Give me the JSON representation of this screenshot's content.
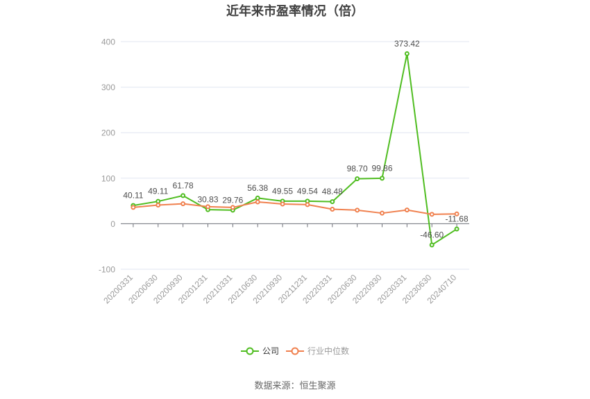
{
  "chart_data": {
    "type": "line",
    "title": "近年来市盈率情况（倍）",
    "categories": [
      "20200331",
      "20200630",
      "20200930",
      "20201231",
      "20210331",
      "20210630",
      "20210930",
      "20211231",
      "20220331",
      "20220630",
      "20220930",
      "20230331",
      "20230630",
      "20240710"
    ],
    "series": [
      {
        "name": "公司",
        "slug": "company",
        "color": "#4fbd20",
        "values": [
          40.11,
          49.11,
          61.78,
          30.83,
          29.76,
          56.38,
          49.55,
          49.54,
          48.48,
          98.7,
          99.86,
          373.42,
          -46.6,
          -11.68
        ],
        "show_labels": true,
        "legend_label_color": "#333333"
      },
      {
        "name": "行业中位数",
        "slug": "industry-median",
        "color": "#f0804e",
        "values": [
          35.8,
          41.0,
          43.8,
          37.4,
          35.8,
          47.9,
          43.3,
          41.9,
          31.9,
          29.8,
          23.2,
          30.2,
          20.7,
          21.5
        ],
        "show_labels": false,
        "legend_label_color": "#999999"
      }
    ],
    "xlabel": "",
    "ylabel": "",
    "ylim": [
      -100,
      400
    ],
    "yticks": [
      -100,
      0,
      100,
      200,
      300,
      400
    ],
    "grid": true,
    "x_label_rotation": 45,
    "label_decimals": 2,
    "legend_position": "bottom"
  },
  "style": {
    "background": "#ffffff",
    "title_color": "#404040",
    "grid_color": "#e0e6f1",
    "axis_color": "#6e7079",
    "axis_label_color": "#999999",
    "value_label_color": "#4d4d4d",
    "marker_fill": "#ffffff"
  },
  "footer": {
    "source_label": "数据来源：恒生聚源"
  }
}
